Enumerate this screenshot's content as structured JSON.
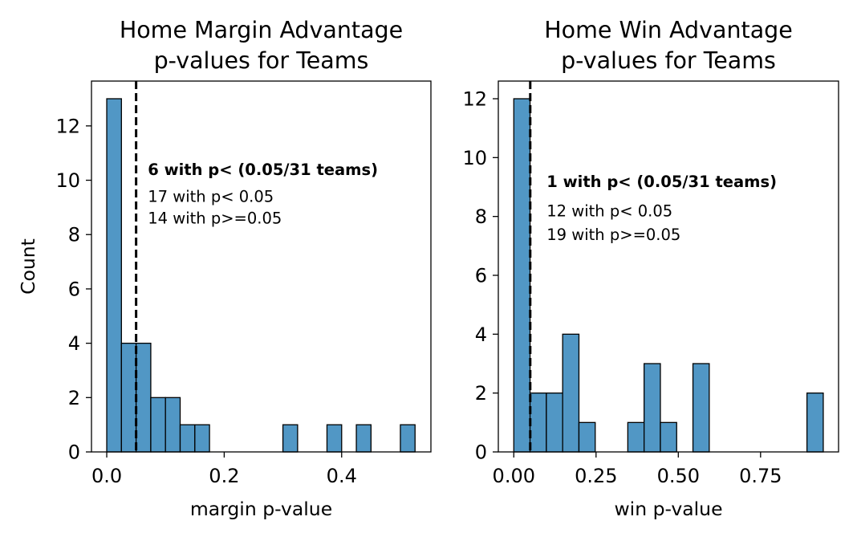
{
  "chart_data": [
    {
      "type": "bar",
      "title": "Home Margin Advantage\np-values for Teams",
      "xlabel": "margin p-value",
      "ylabel": "Count",
      "xlim": [
        -0.026,
        0.552
      ],
      "ylim": [
        0,
        13.65
      ],
      "xticks": [
        0.0,
        0.2,
        0.4
      ],
      "xtick_labels": [
        "0.0",
        "0.2",
        "0.4"
      ],
      "yticks": [
        0,
        2,
        4,
        6,
        8,
        10,
        12
      ],
      "ytick_labels": [
        "0",
        "2",
        "4",
        "6",
        "8",
        "10",
        "12"
      ],
      "bin_edges": [
        0.0,
        0.025,
        0.05,
        0.075,
        0.1,
        0.125,
        0.15,
        0.175,
        0.2,
        0.225,
        0.25,
        0.275,
        0.3,
        0.325,
        0.35,
        0.375,
        0.4,
        0.425,
        0.45,
        0.475,
        0.5,
        0.525
      ],
      "values": [
        13,
        4,
        4,
        2,
        2,
        1,
        1,
        0,
        0,
        0,
        0,
        0,
        1,
        0,
        0,
        1,
        0,
        1,
        0,
        0,
        1
      ],
      "threshold_line": 0.05,
      "annotations": [
        {
          "text": "6 with p< (0.05/31 teams)",
          "x": 0.07,
          "y": 10.2,
          "bold": true
        },
        {
          "text": "17 with p< 0.05",
          "x": 0.07,
          "y": 9.2,
          "bold": false
        },
        {
          "text": "14 with p>=0.05",
          "x": 0.07,
          "y": 8.4,
          "bold": false
        }
      ],
      "grid": false,
      "color": "#5197c5"
    },
    {
      "type": "bar",
      "title": "Home Win Advantage\np-values for Teams",
      "xlabel": "win p-value",
      "ylabel": "",
      "xlim": [
        -0.047,
        0.987
      ],
      "ylim": [
        0,
        12.6
      ],
      "xticks": [
        0.0,
        0.25,
        0.5,
        0.75
      ],
      "xtick_labels": [
        "0.00",
        "0.25",
        "0.50",
        "0.75"
      ],
      "yticks": [
        0,
        2,
        4,
        6,
        8,
        10,
        12
      ],
      "ytick_labels": [
        "0",
        "2",
        "4",
        "6",
        "8",
        "10",
        "12"
      ],
      "bin_edges": [
        0.0,
        0.0495,
        0.099,
        0.1485,
        0.198,
        0.2475,
        0.297,
        0.3465,
        0.396,
        0.4455,
        0.495,
        0.5445,
        0.594,
        0.6435,
        0.693,
        0.7425,
        0.792,
        0.8415,
        0.891,
        0.9405
      ],
      "values": [
        12,
        2,
        2,
        4,
        1,
        0,
        0,
        1,
        3,
        1,
        0,
        3,
        0,
        0,
        0,
        0,
        0,
        0,
        2
      ],
      "threshold_line": 0.05,
      "annotations": [
        {
          "text": "1 with p< (0.05/31 teams)",
          "x": 0.1,
          "y": 9.0,
          "bold": true
        },
        {
          "text": "12 with p< 0.05",
          "x": 0.1,
          "y": 8.0,
          "bold": false
        },
        {
          "text": "19 with p>=0.05",
          "x": 0.1,
          "y": 7.2,
          "bold": false
        }
      ],
      "grid": false,
      "color": "#5197c5"
    }
  ]
}
